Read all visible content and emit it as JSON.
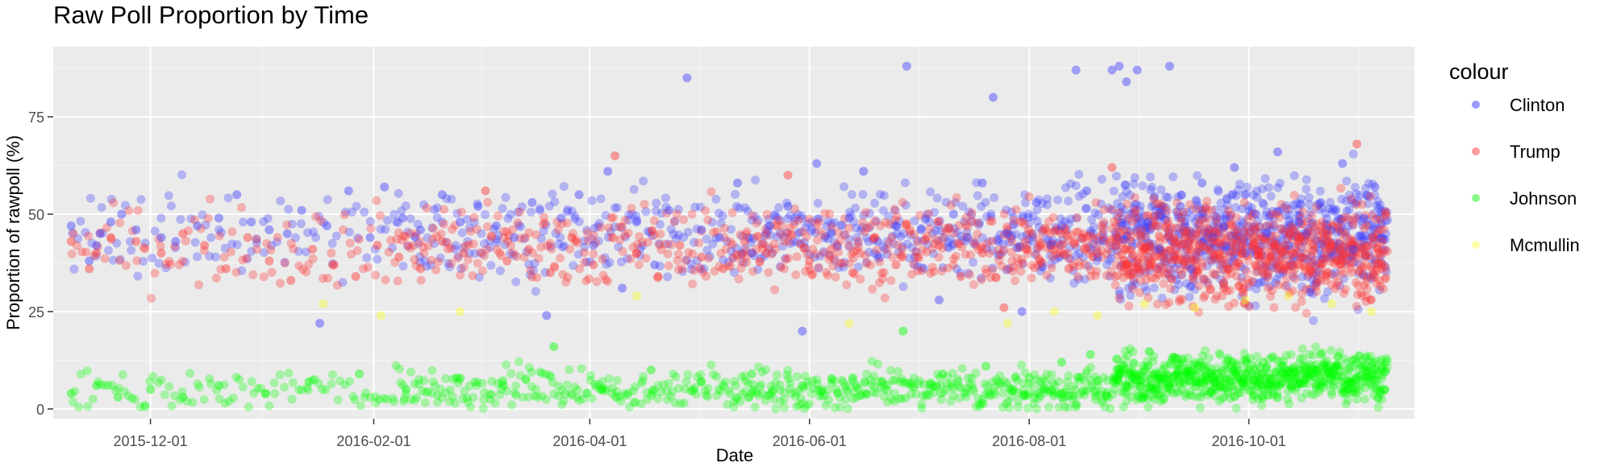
{
  "chart_data": {
    "type": "scatter",
    "title": "Raw Poll Proportion by Time",
    "xlabel": "Date",
    "ylabel": "Proportion of rawpoll (%)",
    "x_ticks": [
      "2015-12-01",
      "2016-02-01",
      "2016-04-01",
      "2016-06-01",
      "2016-08-01",
      "2016-10-01"
    ],
    "y_ticks": [
      0,
      25,
      50,
      75
    ],
    "xlim": [
      "2015-11-04",
      "2016-11-16"
    ],
    "ylim": [
      -2.5,
      93
    ],
    "grid": true,
    "legend": {
      "title": "colour",
      "position": "right",
      "entries": [
        {
          "name": "Clinton",
          "color": "#4a4aff"
        },
        {
          "name": "Trump",
          "color": "#ff4d4d"
        },
        {
          "name": "Johnson",
          "color": "#22ee22"
        },
        {
          "name": "Mcmullin",
          "color": "#ffff66"
        }
      ]
    },
    "series": [
      {
        "name": "Clinton",
        "color": "#3f3fff",
        "points": [
          [
            "2015-11-09",
            47
          ],
          [
            "2015-11-14",
            38
          ],
          [
            "2015-11-16",
            42
          ],
          [
            "2015-11-17",
            45
          ],
          [
            "2015-11-20",
            48
          ],
          [
            "2015-11-23",
            50
          ],
          [
            "2015-11-27",
            46
          ],
          [
            "2015-12-04",
            44
          ],
          [
            "2015-12-08",
            43
          ],
          [
            "2015-12-14",
            47
          ],
          [
            "2015-12-20",
            49
          ],
          [
            "2015-12-25",
            55
          ],
          [
            "2015-12-29",
            48
          ],
          [
            "2016-01-03",
            46
          ],
          [
            "2016-01-08",
            45
          ],
          [
            "2016-01-12",
            51
          ],
          [
            "2016-01-17",
            22
          ],
          [
            "2016-01-19",
            47
          ],
          [
            "2016-01-25",
            56
          ],
          [
            "2016-01-31",
            44
          ],
          [
            "2016-02-04",
            57
          ],
          [
            "2016-02-09",
            49
          ],
          [
            "2016-02-14",
            46
          ],
          [
            "2016-02-20",
            55
          ],
          [
            "2016-02-25",
            48
          ],
          [
            "2016-03-01",
            52
          ],
          [
            "2016-03-06",
            47
          ],
          [
            "2016-03-11",
            44
          ],
          [
            "2016-03-16",
            53
          ],
          [
            "2016-03-20",
            24
          ],
          [
            "2016-03-24",
            49
          ],
          [
            "2016-03-29",
            55
          ],
          [
            "2016-04-02",
            42
          ],
          [
            "2016-04-06",
            61
          ],
          [
            "2016-04-10",
            31
          ],
          [
            "2016-04-14",
            48
          ],
          [
            "2016-04-19",
            37
          ],
          [
            "2016-04-23",
            51
          ],
          [
            "2016-04-28",
            85
          ],
          [
            "2016-05-02",
            46
          ],
          [
            "2016-05-07",
            44
          ],
          [
            "2016-05-12",
            58
          ],
          [
            "2016-05-16",
            40
          ],
          [
            "2016-05-21",
            47
          ],
          [
            "2016-05-26",
            52
          ],
          [
            "2016-05-30",
            20
          ],
          [
            "2016-06-03",
            63
          ],
          [
            "2016-06-07",
            45
          ],
          [
            "2016-06-12",
            49
          ],
          [
            "2016-06-16",
            61
          ],
          [
            "2016-06-20",
            43
          ],
          [
            "2016-06-25",
            47
          ],
          [
            "2016-06-28",
            88
          ],
          [
            "2016-07-02",
            46
          ],
          [
            "2016-07-07",
            28
          ],
          [
            "2016-07-11",
            50
          ],
          [
            "2016-07-15",
            44
          ],
          [
            "2016-07-19",
            58
          ],
          [
            "2016-07-22",
            80
          ],
          [
            "2016-07-26",
            45
          ],
          [
            "2016-07-30",
            25
          ],
          [
            "2016-08-03",
            53
          ],
          [
            "2016-08-07",
            42
          ],
          [
            "2016-08-10",
            47
          ],
          [
            "2016-08-14",
            87
          ],
          [
            "2016-08-17",
            56
          ],
          [
            "2016-08-20",
            39
          ],
          [
            "2016-08-24",
            87
          ],
          [
            "2016-08-26",
            88
          ],
          [
            "2016-08-28",
            84
          ],
          [
            "2016-08-31",
            87
          ],
          [
            "2016-09-03",
            48
          ],
          [
            "2016-09-06",
            41
          ],
          [
            "2016-09-09",
            88
          ],
          [
            "2016-09-12",
            52
          ],
          [
            "2016-09-15",
            36
          ],
          [
            "2016-09-18",
            58
          ],
          [
            "2016-09-21",
            44
          ],
          [
            "2016-09-24",
            47
          ],
          [
            "2016-09-27",
            62
          ],
          [
            "2016-09-30",
            40
          ],
          [
            "2016-10-03",
            50
          ],
          [
            "2016-10-06",
            45
          ],
          [
            "2016-10-09",
            66
          ],
          [
            "2016-10-12",
            42
          ],
          [
            "2016-10-15",
            48
          ],
          [
            "2016-10-18",
            30
          ],
          [
            "2016-10-21",
            53
          ],
          [
            "2016-10-24",
            46
          ],
          [
            "2016-10-27",
            63
          ],
          [
            "2016-10-30",
            41
          ],
          [
            "2016-11-02",
            49
          ],
          [
            "2016-11-05",
            57
          ],
          [
            "2016-11-07",
            44
          ]
        ]
      },
      {
        "name": "Trump",
        "color": "#ff3333",
        "points": [
          [
            "2015-11-09",
            43
          ],
          [
            "2015-11-14",
            36
          ],
          [
            "2015-11-16",
            40
          ],
          [
            "2015-11-20",
            44
          ],
          [
            "2015-11-27",
            43
          ],
          [
            "2015-12-04",
            40
          ],
          [
            "2015-12-10",
            45
          ],
          [
            "2015-12-16",
            42
          ],
          [
            "2015-12-22",
            36
          ],
          [
            "2015-12-28",
            44
          ],
          [
            "2016-01-03",
            38
          ],
          [
            "2016-01-09",
            33
          ],
          [
            "2016-01-15",
            41
          ],
          [
            "2016-01-21",
            37
          ],
          [
            "2016-01-27",
            34
          ],
          [
            "2016-02-02",
            42
          ],
          [
            "2016-02-08",
            39
          ],
          [
            "2016-02-14",
            36
          ],
          [
            "2016-02-20",
            43
          ],
          [
            "2016-02-26",
            40
          ],
          [
            "2016-03-03",
            56
          ],
          [
            "2016-03-09",
            38
          ],
          [
            "2016-03-15",
            41
          ],
          [
            "2016-03-21",
            35
          ],
          [
            "2016-03-27",
            44
          ],
          [
            "2016-04-02",
            37
          ],
          [
            "2016-04-08",
            65
          ],
          [
            "2016-04-14",
            40
          ],
          [
            "2016-04-20",
            34
          ],
          [
            "2016-04-26",
            42
          ],
          [
            "2016-05-02",
            39
          ],
          [
            "2016-05-08",
            36
          ],
          [
            "2016-05-14",
            43
          ],
          [
            "2016-05-20",
            40
          ],
          [
            "2016-05-26",
            60
          ],
          [
            "2016-06-01",
            38
          ],
          [
            "2016-06-07",
            41
          ],
          [
            "2016-06-13",
            35
          ],
          [
            "2016-06-19",
            44
          ],
          [
            "2016-06-25",
            37
          ],
          [
            "2016-07-01",
            39
          ],
          [
            "2016-07-07",
            42
          ],
          [
            "2016-07-13",
            34
          ],
          [
            "2016-07-19",
            40
          ],
          [
            "2016-07-25",
            26
          ],
          [
            "2016-07-31",
            43
          ],
          [
            "2016-08-04",
            38
          ],
          [
            "2016-08-08",
            41
          ],
          [
            "2016-08-12",
            36
          ],
          [
            "2016-08-16",
            44
          ],
          [
            "2016-08-20",
            40
          ],
          [
            "2016-08-24",
            62
          ],
          [
            "2016-08-28",
            37
          ],
          [
            "2016-09-01",
            42
          ],
          [
            "2016-09-05",
            39
          ],
          [
            "2016-09-09",
            45
          ],
          [
            "2016-09-13",
            38
          ],
          [
            "2016-09-17",
            41
          ],
          [
            "2016-09-21",
            43
          ],
          [
            "2016-09-25",
            36
          ],
          [
            "2016-09-29",
            40
          ],
          [
            "2016-10-03",
            44
          ],
          [
            "2016-10-07",
            39
          ],
          [
            "2016-10-11",
            42
          ],
          [
            "2016-10-15",
            37
          ],
          [
            "2016-10-19",
            41
          ],
          [
            "2016-10-23",
            45
          ],
          [
            "2016-10-27",
            38
          ],
          [
            "2016-10-31",
            68
          ],
          [
            "2016-11-03",
            42
          ],
          [
            "2016-11-06",
            40
          ],
          [
            "2016-11-07",
            43
          ]
        ]
      },
      {
        "name": "Johnson",
        "color": "#00ff00",
        "points": [
          [
            "2015-11-09",
            4
          ],
          [
            "2015-11-16",
            6
          ],
          [
            "2015-11-22",
            3
          ],
          [
            "2015-12-01",
            5
          ],
          [
            "2015-12-10",
            3
          ],
          [
            "2015-12-20",
            6
          ],
          [
            "2016-01-02",
            4
          ],
          [
            "2016-01-14",
            7
          ],
          [
            "2016-01-28",
            9
          ],
          [
            "2016-02-10",
            5
          ],
          [
            "2016-02-24",
            8
          ],
          [
            "2016-03-08",
            6
          ],
          [
            "2016-03-22",
            16
          ],
          [
            "2016-04-04",
            5
          ],
          [
            "2016-04-18",
            10
          ],
          [
            "2016-05-02",
            7
          ],
          [
            "2016-05-16",
            9
          ],
          [
            "2016-05-30",
            6
          ],
          [
            "2016-06-13",
            8
          ],
          [
            "2016-06-27",
            20
          ],
          [
            "2016-07-08",
            9
          ],
          [
            "2016-07-20",
            11
          ],
          [
            "2016-08-01",
            8
          ],
          [
            "2016-08-10",
            12
          ],
          [
            "2016-08-18",
            14
          ],
          [
            "2016-08-26",
            9
          ],
          [
            "2016-09-03",
            11
          ],
          [
            "2016-09-11",
            13
          ],
          [
            "2016-09-19",
            8
          ],
          [
            "2016-09-27",
            10
          ],
          [
            "2016-10-05",
            12
          ],
          [
            "2016-10-13",
            9
          ],
          [
            "2016-10-21",
            14
          ],
          [
            "2016-10-29",
            7
          ],
          [
            "2016-11-05",
            10
          ]
        ]
      },
      {
        "name": "Mcmullin",
        "color": "#ffff00",
        "points": [
          [
            "2016-01-18",
            27
          ],
          [
            "2016-02-03",
            24
          ],
          [
            "2016-02-25",
            25
          ],
          [
            "2016-04-14",
            29
          ],
          [
            "2016-06-12",
            22
          ],
          [
            "2016-07-26",
            22
          ],
          [
            "2016-08-08",
            25
          ],
          [
            "2016-08-20",
            24
          ],
          [
            "2016-09-02",
            27
          ],
          [
            "2016-09-16",
            26
          ],
          [
            "2016-09-30",
            28
          ],
          [
            "2016-10-12",
            29
          ],
          [
            "2016-10-24",
            27
          ],
          [
            "2016-11-04",
            25
          ]
        ]
      }
    ]
  }
}
